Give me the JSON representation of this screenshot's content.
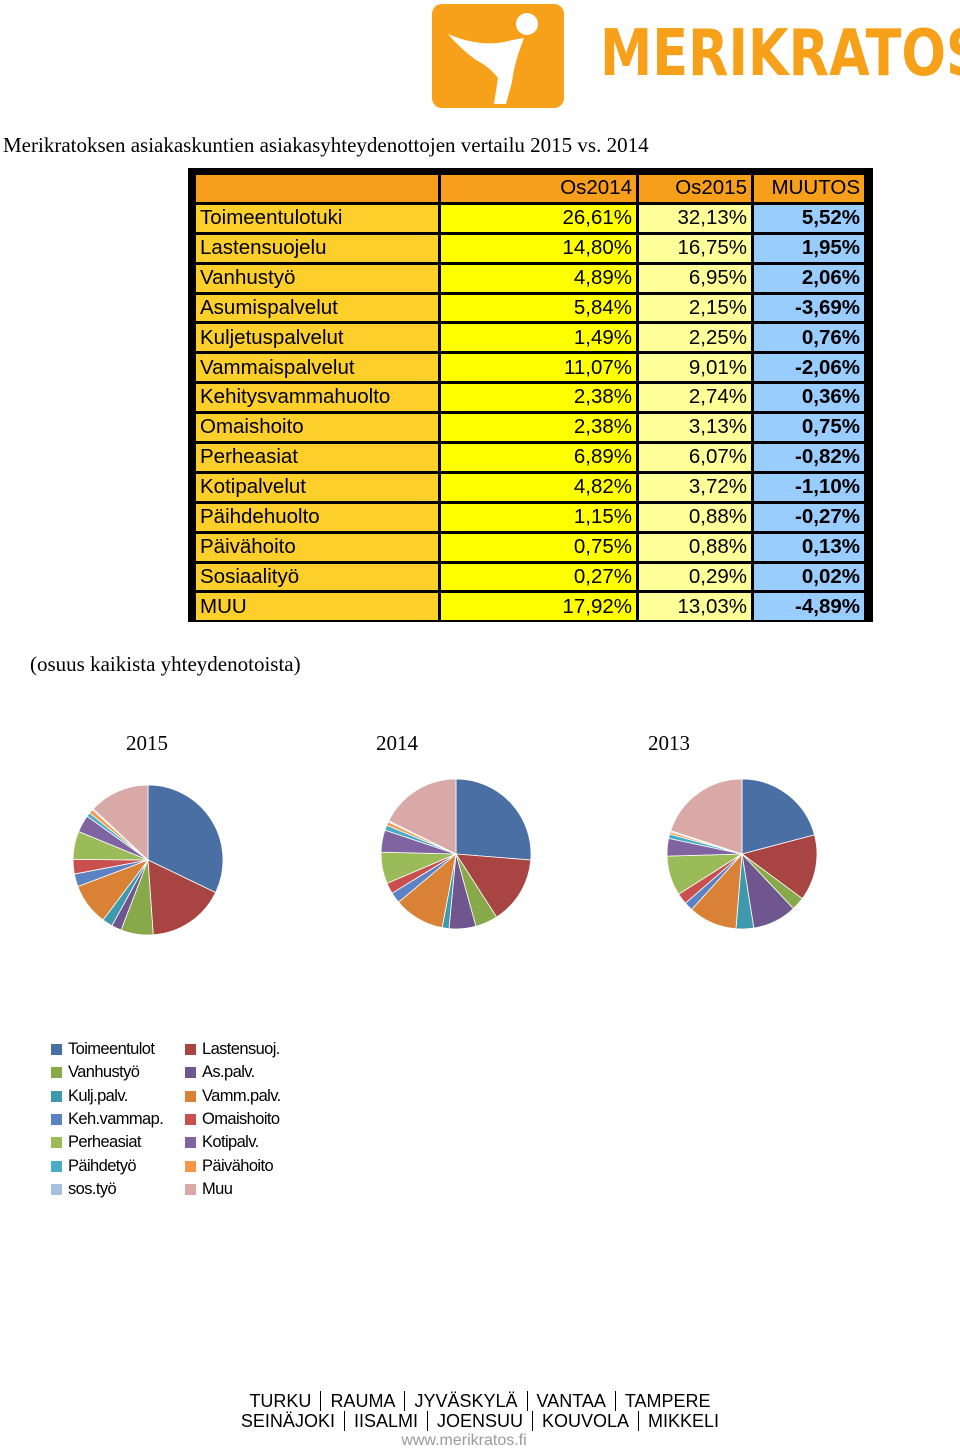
{
  "brand": {
    "name": "MERIKRATOS",
    "color": "#f7a11a",
    "icon": "merikratos-logo-icon"
  },
  "document": {
    "title": "Merikratoksen asiakaskuntien asiakasyhteydenottojen vertailu 2015   vs. 2014",
    "note": "(osuus kaikista yhteydenotoista)"
  },
  "table": {
    "headers": [
      "",
      "Os2014",
      "Os2015",
      "MUUTOS"
    ],
    "rows": [
      {
        "label": "Toimeentulotuki",
        "os2014": "26,61%",
        "os2015": "32,13%",
        "muutos": "5,52%"
      },
      {
        "label": "Lastensuojelu",
        "os2014": "14,80%",
        "os2015": "16,75%",
        "muutos": "1,95%"
      },
      {
        "label": "Vanhustyö",
        "os2014": "4,89%",
        "os2015": "6,95%",
        "muutos": "2,06%"
      },
      {
        "label": "Asumispalvelut",
        "os2014": "5,84%",
        "os2015": "2,15%",
        "muutos": "-3,69%"
      },
      {
        "label": "Kuljetuspalvelut",
        "os2014": "1,49%",
        "os2015": "2,25%",
        "muutos": "0,76%"
      },
      {
        "label": "Vammaispalvelut",
        "os2014": "11,07%",
        "os2015": "9,01%",
        "muutos": "-2,06%"
      },
      {
        "label": "Kehitysvammahuolto",
        "os2014": "2,38%",
        "os2015": "2,74%",
        "muutos": "0,36%"
      },
      {
        "label": "Omaishoito",
        "os2014": "2,38%",
        "os2015": "3,13%",
        "muutos": "0,75%"
      },
      {
        "label": "Perheasiat",
        "os2014": "6,89%",
        "os2015": "6,07%",
        "muutos": "-0,82%"
      },
      {
        "label": "Kotipalvelut",
        "os2014": "4,82%",
        "os2015": "3,72%",
        "muutos": "-1,10%"
      },
      {
        "label": "Päihdehuolto",
        "os2014": "1,15%",
        "os2015": "0,88%",
        "muutos": "-0,27%"
      },
      {
        "label": "Päivähoito",
        "os2014": "0,75%",
        "os2015": "0,88%",
        "muutos": "0,13%"
      },
      {
        "label": "Sosiaalityö",
        "os2014": "0,27%",
        "os2015": "0,29%",
        "muutos": "0,02%"
      },
      {
        "label": "MUU",
        "os2014": "17,92%",
        "os2015": "13,03%",
        "muutos": "-4,89%"
      }
    ],
    "colors": {
      "header": "#f79e1b",
      "label": "#fdcf2b",
      "os2014": "#ffff00",
      "os2015": "#ffff99",
      "muutos": "#99ccff"
    }
  },
  "chart_data": {
    "type": "pie",
    "categories": [
      "Toimeentulot",
      "Lastensuoj.",
      "Vanhustyö",
      "As.palv.",
      "Kulj.palv.",
      "Vamm.palv.",
      "Keh.vammap.",
      "Omaishoito",
      "Perheasiat",
      "Kotipalv.",
      "Päihdetyö",
      "Päivähoito",
      "sos.työ",
      "Muu"
    ],
    "colors": [
      "#4a6fa5",
      "#a84442",
      "#88a94a",
      "#6f568e",
      "#3f99ad",
      "#d98236",
      "#5b82c2",
      "#c9504e",
      "#9bbb59",
      "#8064a2",
      "#4bacc6",
      "#f79646",
      "#a8bfde",
      "#d9a9a8"
    ],
    "series": [
      {
        "name": "2015",
        "values": [
          32.13,
          16.75,
          6.95,
          2.15,
          2.25,
          9.01,
          2.74,
          3.13,
          6.07,
          3.72,
          0.88,
          0.88,
          0.29,
          13.03
        ]
      },
      {
        "name": "2014",
        "values": [
          26.61,
          14.8,
          4.89,
          5.84,
          1.49,
          11.07,
          2.38,
          2.38,
          6.89,
          4.82,
          1.15,
          0.75,
          0.27,
          17.92
        ]
      },
      {
        "name": "2013",
        "values": [
          22.0,
          15.0,
          3.0,
          10.0,
          4.0,
          11.0,
          2.0,
          2.5,
          9.0,
          4.0,
          1.0,
          0.5,
          0.3,
          21.0
        ]
      }
    ],
    "legend": "bottom-left"
  },
  "footer": {
    "row1": [
      "TURKU",
      "RAUMA",
      "JYVÄSKYLÄ",
      "VANTAA",
      "TAMPERE"
    ],
    "row2": [
      "SEINÄJOKI",
      "IISALMI",
      "JOENSUU",
      "KOUVOLA",
      "MIKKELI"
    ],
    "url": "www.merikratos.fi"
  }
}
